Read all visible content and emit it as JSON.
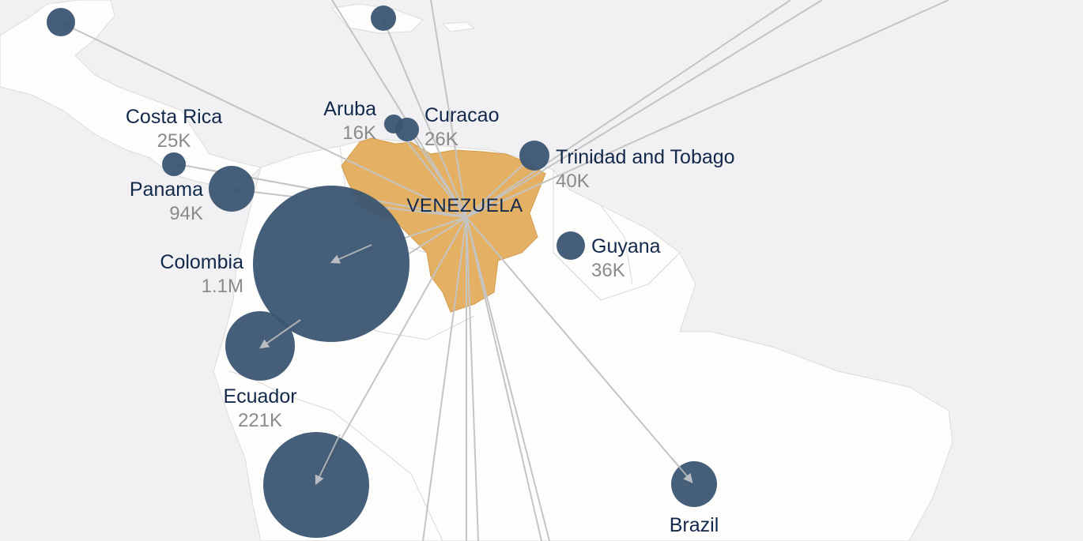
{
  "origin": {
    "label": "VENEZUELA",
    "color": "#e3b064"
  },
  "colors": {
    "bubble": "#3b5572",
    "flow": "#c4c4c4",
    "land": "#fdfdfc",
    "sea": "#f1f1f3"
  },
  "destinations": [
    {
      "id": "costa-rica",
      "name": "Costa Rica",
      "value_label": "25K",
      "value": 25000
    },
    {
      "id": "panama",
      "name": "Panama",
      "value_label": "94K",
      "value": 94000
    },
    {
      "id": "aruba",
      "name": "Aruba",
      "value_label": "16K",
      "value": 16000
    },
    {
      "id": "curacao",
      "name": "Curacao",
      "value_label": "26K",
      "value": 26000
    },
    {
      "id": "trinidad",
      "name": "Trinidad and Tobago",
      "value_label": "40K",
      "value": 40000
    },
    {
      "id": "guyana",
      "name": "Guyana",
      "value_label": "36K",
      "value": 36000
    },
    {
      "id": "colombia",
      "name": "Colombia",
      "value_label": "1.1M",
      "value": 1100000
    },
    {
      "id": "ecuador",
      "name": "Ecuador",
      "value_label": "221K",
      "value": 221000
    },
    {
      "id": "brazil",
      "name": "Brazil",
      "value_label": "",
      "value": null
    },
    {
      "id": "peru",
      "name": "",
      "value_label": "",
      "value": null
    },
    {
      "id": "mexico",
      "name": "",
      "value_label": "",
      "value": null
    },
    {
      "id": "dominican-republic",
      "name": "",
      "value_label": "",
      "value": null
    }
  ]
}
